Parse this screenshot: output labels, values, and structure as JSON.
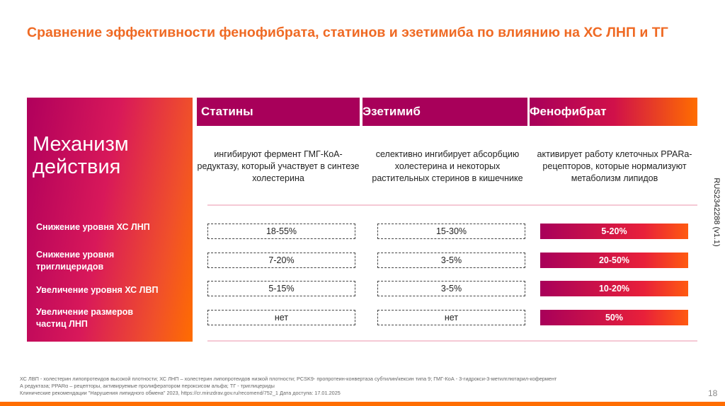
{
  "title": "Сравнение эффективности фенофибрата, статинов и эзетимиба по влиянию на ХС ЛНП и ТГ",
  "left_panel": {
    "mechanism": "Механизм действия",
    "rows": [
      "Снижение уровня ХС ЛНП",
      "Снижение уровня триглицеридов",
      "Увеличение уровня ХС ЛВП",
      "Увеличение размеров частиц ЛНП"
    ]
  },
  "columns": [
    {
      "name": "Статины",
      "mechanism": "ингибируют фермент ГМГ-КоА-редуктазу, который участвует в синтезе холестерина",
      "values": [
        "18-55%",
        "7-20%",
        "5-15%",
        "нет"
      ]
    },
    {
      "name": "Эзетимиб",
      "mechanism": "селективно ингибирует абсорбцию холестерина и некоторых растительных стеринов в кишечнике",
      "values": [
        "15-30%",
        "3-5%",
        "3-5%",
        "нет"
      ]
    },
    {
      "name": "Фенофибрат",
      "mechanism": "активирует работу клеточных PPARa- рецепторов, которые нормализуют метаболизм липидов",
      "values": [
        "5-20%",
        "20-50%",
        "10-20%",
        "50%"
      ]
    }
  ],
  "side_code": "RUS2342288 (v1.1)",
  "footnote": [
    "ХС ЛВП - холестерин липопротеидов высокой плотности; ХС ЛНП – холестерин липопротеидов низкой плотности; PCSK9- пропротеин-конвертаза субтилин/кексин типа 9; ГМГ-КоА - 3-гидрокси-3-метилглютарил-кофермент А редуктаза; PPARα – рецепторы, активируемые пролифератором пероксисом альфа; ТГ - триглицериды",
    "Клинические рекомендации \"Нарушения липидного обмена\" 2023, https://cr.minzdrav.gov.ru/recomend/752_1 Дата доступа: 17.01.2025"
  ],
  "page_number": "18",
  "colors": {
    "accent": "#ef6a24",
    "magenta": "#a8005a",
    "orange": "#ff6d00"
  }
}
